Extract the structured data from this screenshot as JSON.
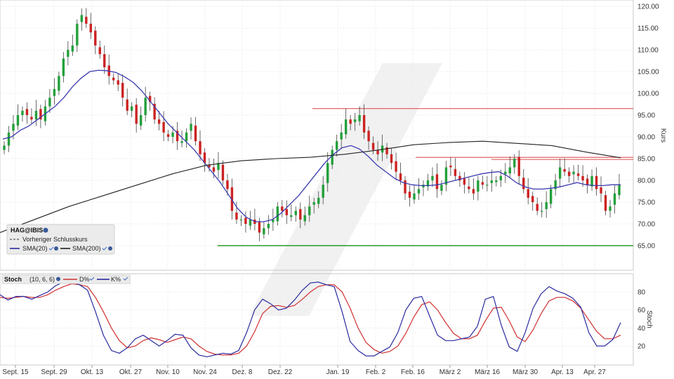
{
  "chart_data": [
    {
      "type": "candlestick",
      "price_axis_label": "Kurs",
      "price_ticks": [
        "120.00",
        "115.00",
        "110.00",
        "105.00",
        "100.00",
        "95.00",
        "90.00",
        "85.00",
        "80.00",
        "75.00",
        "70.00",
        "65.00"
      ],
      "ylim": [
        60.5,
        121.5
      ],
      "x_tick_labels": [
        "Sept. 15",
        "Sept. 29",
        "Okt. 13",
        "Okt. 27",
        "Nov. 10",
        "Nov. 24",
        "Dez. 8",
        "Dez. 22",
        "Jan. 19",
        "Feb. 2",
        "Feb. 16",
        "März 2",
        "März 16",
        "März 30",
        "Apr. 13",
        "Apr. 27"
      ],
      "legend": {
        "symbol": "HAG@IBIS",
        "prev_close_label": "Vorheriger Schlusskurs",
        "sma20_label": "SMA(20)",
        "sma200_label": "SMA(200)"
      },
      "horizontal_lines": [
        {
          "value": 96.5,
          "color": "#e05555"
        },
        {
          "value": 85.3,
          "color": "#e05555"
        },
        {
          "value": 84.8,
          "color": "#e05555"
        },
        {
          "value": 65.0,
          "color": "#2a9a2a"
        }
      ],
      "close": [
        88,
        91,
        93,
        95,
        96,
        95,
        94,
        96,
        94,
        97,
        99,
        101,
        104,
        108,
        110,
        111,
        116,
        118,
        116,
        114,
        111,
        109,
        106,
        104,
        103,
        102,
        99,
        96,
        97,
        93,
        95,
        99,
        98,
        94,
        93,
        91,
        90,
        91,
        89,
        89,
        91,
        93,
        89,
        86,
        84,
        83,
        82,
        84,
        80,
        78,
        73,
        71,
        71,
        70,
        71,
        70,
        68,
        69,
        70,
        71,
        74,
        73,
        72,
        72,
        73,
        71,
        72,
        74,
        75,
        76,
        79,
        84,
        87,
        89,
        91,
        94,
        93,
        94,
        95,
        91,
        89,
        87,
        86,
        88,
        86,
        84,
        82,
        80,
        77,
        76,
        77,
        78,
        79,
        80,
        81,
        78,
        79,
        83,
        83,
        81,
        80,
        79,
        78,
        77,
        80,
        79,
        79,
        80,
        80,
        81,
        82,
        83,
        85,
        81,
        78,
        76,
        75,
        73,
        73,
        75,
        78,
        80,
        83,
        82,
        81,
        82,
        81,
        80,
        79,
        81,
        78,
        77,
        73,
        74,
        77,
        79
      ],
      "sma20": [
        89.5,
        90,
        91.5,
        92.5,
        94,
        95.5,
        97,
        99,
        101.5,
        103.5,
        105,
        105.3,
        105.2,
        104.8,
        103.8,
        102.5,
        100.5,
        98,
        95.5,
        93,
        91,
        89,
        87,
        84.5,
        82,
        79.5,
        76.5,
        73.5,
        71.5,
        70.5,
        70.5,
        71,
        72.5,
        74.5,
        76.5,
        79,
        81.5,
        84,
        86,
        87.5,
        88,
        87.2,
        85.5,
        83.5,
        82,
        80.5,
        79.5,
        79,
        78.8,
        78.8,
        79,
        79.5,
        80,
        80.5,
        81,
        81.5,
        81.8,
        82,
        81,
        79.5,
        78.5,
        78,
        78,
        78.2,
        78.5,
        79,
        79.5,
        79,
        78.8,
        78.8,
        79,
        79
      ],
      "sma200": [
        68,
        71,
        74,
        76.5,
        79,
        81.5,
        83.5,
        84.5,
        85,
        85.3,
        86,
        87,
        88.2,
        88.7,
        89,
        88.5,
        88,
        86.5,
        85.2
      ],
      "stoch_panel": {
        "title": "Stoch",
        "params": "(10, 6, 6)",
        "d_label": "D%",
        "k_label": "K%",
        "ticks": [
          "80",
          "60",
          "40",
          "20"
        ],
        "ylim": [
          0,
          100
        ],
        "k_values": [
          77,
          71,
          75,
          75,
          72,
          76,
          80,
          87,
          91,
          91,
          88,
          82,
          58,
          32,
          15,
          12,
          18,
          28,
          32,
          26,
          20,
          26,
          33,
          32,
          18,
          10,
          8,
          10,
          12,
          11,
          15,
          35,
          60,
          72,
          67,
          60,
          62,
          71,
          82,
          90,
          91,
          88,
          86,
          58,
          25,
          15,
          9,
          9,
          14,
          19,
          35,
          60,
          73,
          75,
          53,
          32,
          26,
          26,
          28,
          30,
          42,
          72,
          75,
          43,
          19,
          14,
          35,
          62,
          78,
          86,
          81,
          78,
          73,
          63,
          35,
          20,
          20,
          27,
          46
        ],
        "d_values": [
          74,
          73,
          74,
          75,
          74,
          74,
          77,
          82,
          86,
          89,
          88,
          86,
          74,
          58,
          40,
          26,
          18,
          20,
          26,
          29,
          27,
          24,
          27,
          30,
          28,
          20,
          14,
          11,
          10,
          10,
          12,
          20,
          36,
          56,
          64,
          65,
          63,
          65,
          72,
          80,
          86,
          88,
          88,
          80,
          62,
          40,
          24,
          16,
          12,
          14,
          20,
          34,
          52,
          66,
          69,
          60,
          46,
          34,
          28,
          28,
          32,
          48,
          62,
          63,
          48,
          30,
          25,
          38,
          56,
          70,
          74,
          74,
          70,
          62,
          49,
          36,
          28,
          28,
          32
        ]
      }
    }
  ]
}
